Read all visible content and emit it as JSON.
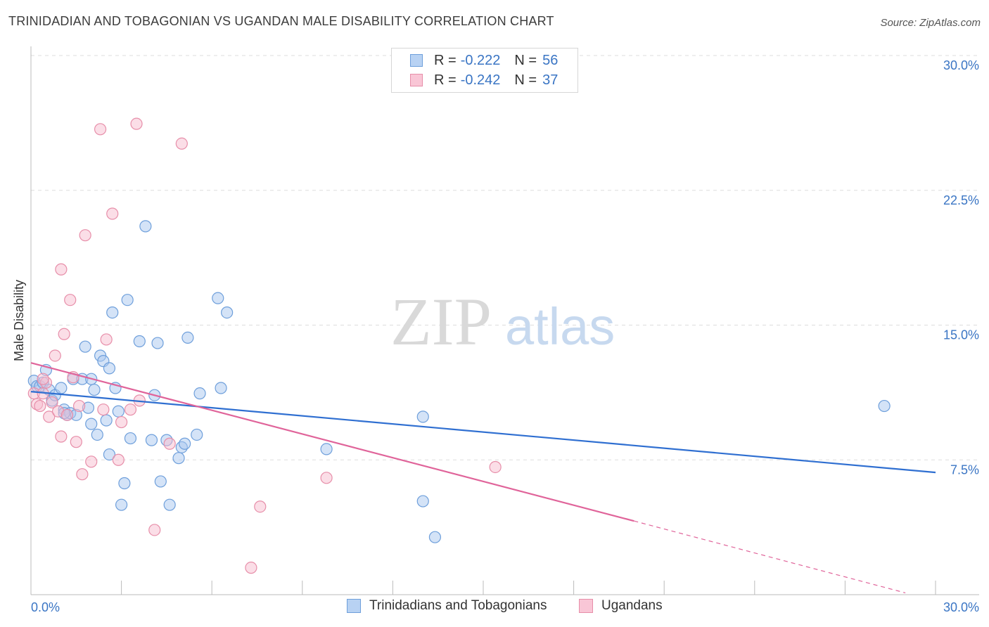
{
  "title": "TRINIDADIAN AND TOBAGONIAN VS UGANDAN MALE DISABILITY CORRELATION CHART",
  "source": "Source: ZipAtlas.com",
  "watermark": {
    "zip": "ZIP",
    "atlas": "atlas"
  },
  "legend": {
    "r_label": "R =",
    "n_label": "N =",
    "rows": [
      {
        "r": "-0.222",
        "n": "56",
        "fill": "#b8d2f3",
        "stroke": "#6e9fdb"
      },
      {
        "r": "-0.242",
        "n": "37",
        "fill": "#f9c6d6",
        "stroke": "#e78ea9"
      }
    ]
  },
  "bottom_legend": [
    "Trinidadians and Tobagonians",
    "Ugandans"
  ],
  "colors": {
    "blue_fill": "#aac8ef",
    "blue_stroke": "#6e9fdb",
    "blue_line": "#2f6fd1",
    "pink_fill": "#f7bdd0",
    "pink_stroke": "#e78ea9",
    "pink_line": "#e0649a",
    "grid": "#dddddd",
    "axis_text": "#3a75c4"
  },
  "chart_data": {
    "type": "scatter",
    "title": "TRINIDADIAN AND TOBAGONIAN VS UGANDAN MALE DISABILITY CORRELATION CHART",
    "xlabel": "",
    "ylabel": "Male Disability",
    "xlim": [
      0,
      30
    ],
    "ylim": [
      0,
      30
    ],
    "x_tick_labels": [
      {
        "value": 0,
        "label": "0.0%"
      },
      {
        "value": 30,
        "label": "30.0%"
      }
    ],
    "y_tick_labels": [
      {
        "value": 7.5,
        "label": "7.5%"
      },
      {
        "value": 15,
        "label": "15.0%"
      },
      {
        "value": 22.5,
        "label": "22.5%"
      },
      {
        "value": 30,
        "label": "30.0%"
      }
    ],
    "series": [
      {
        "name": "Trinidadians and Tobagonians",
        "points": [
          [
            0.1,
            11.9
          ],
          [
            0.2,
            11.6
          ],
          [
            0.3,
            11.6
          ],
          [
            0.4,
            11.8
          ],
          [
            0.5,
            12.5
          ],
          [
            0.6,
            11.4
          ],
          [
            0.7,
            10.8
          ],
          [
            0.8,
            11.1
          ],
          [
            1.0,
            11.5
          ],
          [
            1.1,
            10.3
          ],
          [
            1.2,
            10.0
          ],
          [
            1.3,
            10.1
          ],
          [
            1.4,
            12.0
          ],
          [
            1.5,
            10.0
          ],
          [
            1.7,
            12.0
          ],
          [
            1.8,
            13.8
          ],
          [
            1.9,
            10.4
          ],
          [
            2.0,
            9.5
          ],
          [
            2.0,
            12.0
          ],
          [
            2.1,
            11.4
          ],
          [
            2.2,
            8.9
          ],
          [
            2.3,
            13.3
          ],
          [
            2.4,
            13.0
          ],
          [
            2.5,
            9.7
          ],
          [
            2.6,
            12.6
          ],
          [
            2.6,
            7.8
          ],
          [
            2.7,
            15.7
          ],
          [
            2.8,
            11.5
          ],
          [
            2.9,
            10.2
          ],
          [
            3.0,
            5.0
          ],
          [
            3.1,
            6.2
          ],
          [
            3.2,
            16.4
          ],
          [
            3.3,
            8.7
          ],
          [
            3.6,
            14.1
          ],
          [
            3.8,
            20.5
          ],
          [
            4.0,
            8.6
          ],
          [
            4.1,
            11.1
          ],
          [
            4.2,
            14.0
          ],
          [
            4.3,
            6.3
          ],
          [
            4.5,
            8.6
          ],
          [
            4.6,
            5.0
          ],
          [
            4.9,
            7.6
          ],
          [
            5.0,
            8.2
          ],
          [
            5.1,
            8.4
          ],
          [
            5.2,
            14.3
          ],
          [
            5.5,
            8.9
          ],
          [
            5.6,
            11.2
          ],
          [
            6.2,
            16.5
          ],
          [
            6.3,
            11.5
          ],
          [
            6.5,
            15.7
          ],
          [
            9.8,
            8.1
          ],
          [
            13.0,
            9.9
          ],
          [
            13.0,
            5.2
          ],
          [
            13.4,
            3.2
          ],
          [
            28.3,
            10.5
          ],
          [
            1.1,
            10.1
          ]
        ],
        "trend": {
          "x": [
            0,
            30
          ],
          "y": [
            11.3,
            6.8
          ]
        }
      },
      {
        "name": "Ugandans",
        "points": [
          [
            0.1,
            11.2
          ],
          [
            0.2,
            10.6
          ],
          [
            0.3,
            10.5
          ],
          [
            0.4,
            11.2
          ],
          [
            0.5,
            11.8
          ],
          [
            0.6,
            9.9
          ],
          [
            0.7,
            10.7
          ],
          [
            0.8,
            13.3
          ],
          [
            0.9,
            10.2
          ],
          [
            1.0,
            18.1
          ],
          [
            1.0,
            8.8
          ],
          [
            1.1,
            14.5
          ],
          [
            1.2,
            10.0
          ],
          [
            1.3,
            16.4
          ],
          [
            1.4,
            12.1
          ],
          [
            1.5,
            8.5
          ],
          [
            1.6,
            10.5
          ],
          [
            1.7,
            6.7
          ],
          [
            1.8,
            20.0
          ],
          [
            2.0,
            7.4
          ],
          [
            2.3,
            25.9
          ],
          [
            2.4,
            10.3
          ],
          [
            2.5,
            14.2
          ],
          [
            2.7,
            21.2
          ],
          [
            2.9,
            7.5
          ],
          [
            3.0,
            9.6
          ],
          [
            3.3,
            10.3
          ],
          [
            3.5,
            26.2
          ],
          [
            3.6,
            10.8
          ],
          [
            4.1,
            3.6
          ],
          [
            4.6,
            8.4
          ],
          [
            5.0,
            25.1
          ],
          [
            7.3,
            1.5
          ],
          [
            7.6,
            4.9
          ],
          [
            9.8,
            6.5
          ],
          [
            15.4,
            7.1
          ],
          [
            0.4,
            12.0
          ]
        ],
        "trend": {
          "x": [
            0,
            20
          ],
          "y": [
            12.9,
            4.1
          ]
        },
        "trend_dashed": {
          "x": [
            20,
            29
          ],
          "y": [
            4.1,
            0.1
          ]
        }
      }
    ]
  }
}
